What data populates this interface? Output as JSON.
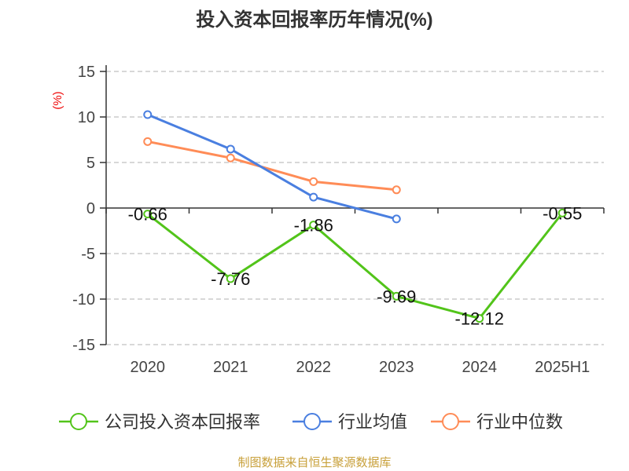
{
  "chart_data": {
    "type": "line",
    "title": "投入资本回报率历年情况(%)",
    "ylabel": "(%)",
    "xlabel": "",
    "categories": [
      "2020",
      "2021",
      "2022",
      "2023",
      "2024",
      "2025H1"
    ],
    "ylim": [
      -15,
      15
    ],
    "yticks": [
      15,
      10,
      5,
      0,
      -5,
      -10,
      -15
    ],
    "grid": true,
    "legend_position": "bottom",
    "series": [
      {
        "name": "公司投入资本回报率",
        "color": "#52c41a",
        "values": [
          -0.66,
          -7.76,
          -1.86,
          -9.69,
          -12.12,
          -0.55
        ],
        "labels": [
          "-0.66",
          "-7.76",
          "-1.86",
          "-9.69",
          "-12.12",
          "-0.55"
        ]
      },
      {
        "name": "行业均值",
        "color": "#4a7fe0",
        "values": [
          10.26,
          6.47,
          1.2,
          -1.2,
          null,
          null
        ]
      },
      {
        "name": "行业中位数",
        "color": "#ff8c57",
        "values": [
          7.3,
          5.5,
          2.9,
          2.0,
          null,
          null
        ]
      }
    ],
    "source": "制图数据来自恒生聚源数据库"
  }
}
